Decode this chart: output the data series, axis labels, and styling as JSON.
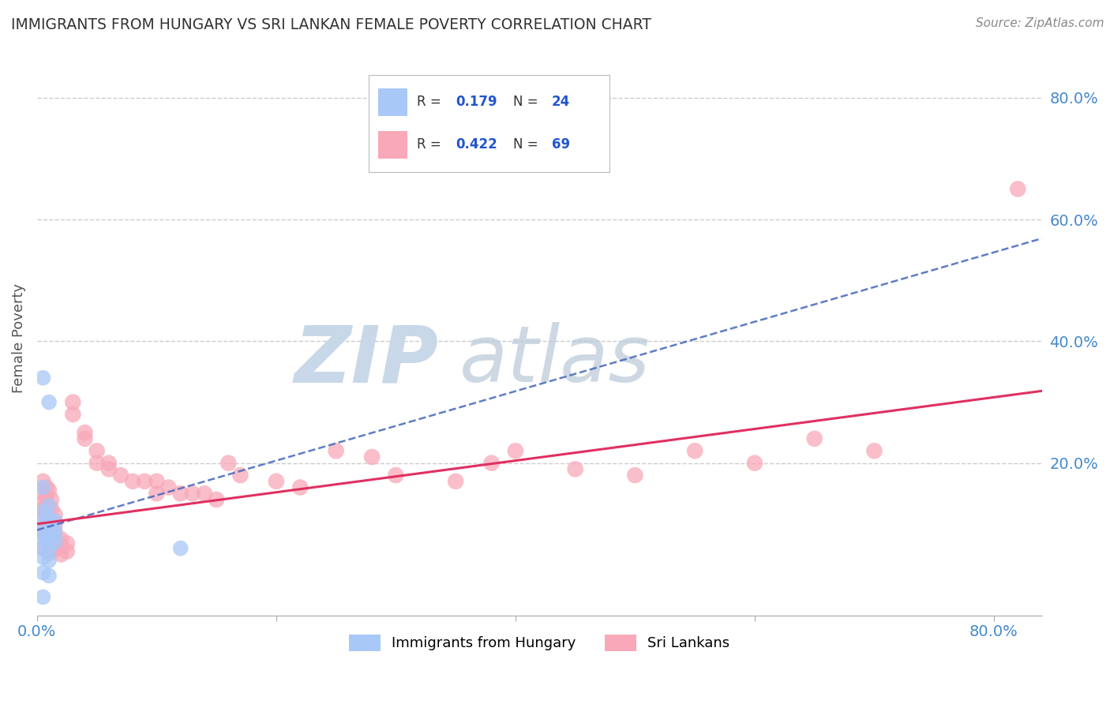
{
  "title": "IMMIGRANTS FROM HUNGARY VS SRI LANKAN FEMALE POVERTY CORRELATION CHART",
  "source": "Source: ZipAtlas.com",
  "ylabel": "Female Poverty",
  "right_yticks": [
    "80.0%",
    "60.0%",
    "40.0%",
    "20.0%"
  ],
  "right_ytick_vals": [
    0.8,
    0.6,
    0.4,
    0.2
  ],
  "xlim": [
    0.0,
    0.84
  ],
  "ylim": [
    -0.05,
    0.86
  ],
  "hungary_color": "#a8c8f8",
  "srilanka_color": "#f8a8b8",
  "trend_hungary_color": "#4466bb",
  "trend_srilanka_color": "#e03060",
  "background": "#ffffff",
  "grid_color": "#cccccc",
  "hungary_points": [
    [
      0.005,
      0.34
    ],
    [
      0.01,
      0.3
    ],
    [
      0.005,
      0.16
    ],
    [
      0.01,
      0.13
    ],
    [
      0.005,
      0.12
    ],
    [
      0.01,
      0.11
    ],
    [
      0.015,
      0.105
    ],
    [
      0.005,
      0.1
    ],
    [
      0.01,
      0.095
    ],
    [
      0.015,
      0.09
    ],
    [
      0.005,
      0.085
    ],
    [
      0.01,
      0.082
    ],
    [
      0.015,
      0.08
    ],
    [
      0.005,
      0.075
    ],
    [
      0.01,
      0.072
    ],
    [
      0.015,
      0.07
    ],
    [
      0.005,
      0.06
    ],
    [
      0.01,
      0.055
    ],
    [
      0.005,
      0.045
    ],
    [
      0.01,
      0.04
    ],
    [
      0.005,
      0.02
    ],
    [
      0.01,
      0.015
    ],
    [
      0.005,
      -0.02
    ],
    [
      0.12,
      0.06
    ]
  ],
  "srilanka_points": [
    [
      0.005,
      0.17
    ],
    [
      0.008,
      0.16
    ],
    [
      0.01,
      0.155
    ],
    [
      0.005,
      0.15
    ],
    [
      0.008,
      0.145
    ],
    [
      0.012,
      0.14
    ],
    [
      0.005,
      0.135
    ],
    [
      0.008,
      0.13
    ],
    [
      0.012,
      0.125
    ],
    [
      0.005,
      0.125
    ],
    [
      0.008,
      0.12
    ],
    [
      0.015,
      0.115
    ],
    [
      0.005,
      0.11
    ],
    [
      0.01,
      0.105
    ],
    [
      0.015,
      0.1
    ],
    [
      0.008,
      0.1
    ],
    [
      0.012,
      0.095
    ],
    [
      0.005,
      0.09
    ],
    [
      0.01,
      0.088
    ],
    [
      0.015,
      0.085
    ],
    [
      0.005,
      0.085
    ],
    [
      0.01,
      0.08
    ],
    [
      0.02,
      0.075
    ],
    [
      0.008,
      0.075
    ],
    [
      0.015,
      0.07
    ],
    [
      0.025,
      0.068
    ],
    [
      0.01,
      0.065
    ],
    [
      0.02,
      0.062
    ],
    [
      0.005,
      0.06
    ],
    [
      0.015,
      0.058
    ],
    [
      0.025,
      0.055
    ],
    [
      0.01,
      0.052
    ],
    [
      0.02,
      0.05
    ],
    [
      0.03,
      0.3
    ],
    [
      0.03,
      0.28
    ],
    [
      0.04,
      0.25
    ],
    [
      0.04,
      0.24
    ],
    [
      0.05,
      0.22
    ],
    [
      0.05,
      0.2
    ],
    [
      0.06,
      0.2
    ],
    [
      0.06,
      0.19
    ],
    [
      0.07,
      0.18
    ],
    [
      0.08,
      0.17
    ],
    [
      0.09,
      0.17
    ],
    [
      0.1,
      0.17
    ],
    [
      0.1,
      0.15
    ],
    [
      0.11,
      0.16
    ],
    [
      0.12,
      0.15
    ],
    [
      0.13,
      0.15
    ],
    [
      0.14,
      0.15
    ],
    [
      0.15,
      0.14
    ],
    [
      0.16,
      0.2
    ],
    [
      0.17,
      0.18
    ],
    [
      0.2,
      0.17
    ],
    [
      0.22,
      0.16
    ],
    [
      0.25,
      0.22
    ],
    [
      0.28,
      0.21
    ],
    [
      0.3,
      0.18
    ],
    [
      0.35,
      0.17
    ],
    [
      0.38,
      0.2
    ],
    [
      0.4,
      0.22
    ],
    [
      0.45,
      0.19
    ],
    [
      0.5,
      0.18
    ],
    [
      0.55,
      0.22
    ],
    [
      0.6,
      0.2
    ],
    [
      0.65,
      0.24
    ],
    [
      0.7,
      0.22
    ],
    [
      0.82,
      0.65
    ]
  ]
}
